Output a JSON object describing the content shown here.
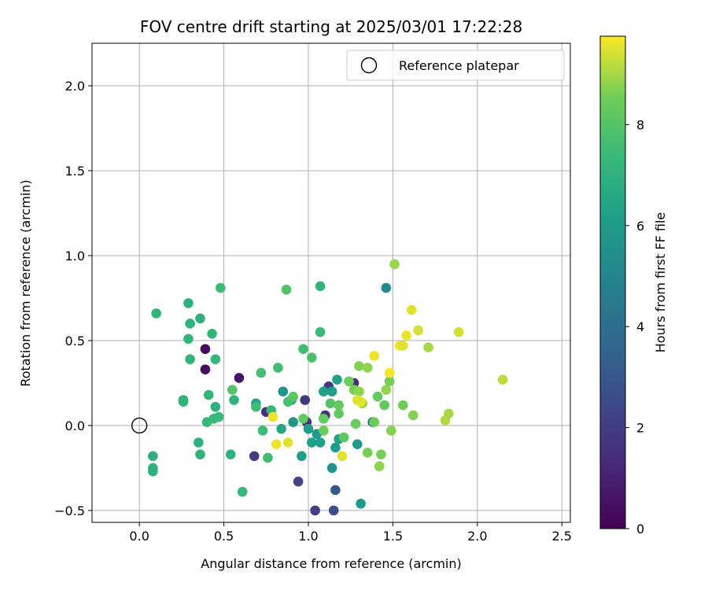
{
  "chart_data": {
    "type": "scatter",
    "title": "FOV centre drift starting at 2025/03/01 17:22:28",
    "xlabel": "Angular distance from reference (arcmin)",
    "ylabel": "Rotation from reference (arcmin)",
    "xlim": [
      -0.28,
      2.55
    ],
    "ylim": [
      -0.57,
      2.25
    ],
    "x_ticks": [
      0.0,
      0.5,
      1.0,
      1.5,
      2.0,
      2.5
    ],
    "x_tick_labels": [
      "0.0",
      "0.5",
      "1.0",
      "1.5",
      "2.0",
      "2.5"
    ],
    "y_ticks": [
      -0.5,
      0.0,
      0.5,
      1.0,
      1.5,
      2.0
    ],
    "y_tick_labels": [
      "−0.5",
      "0.0",
      "0.5",
      "1.0",
      "1.5",
      "2.0"
    ],
    "grid": true,
    "legend": {
      "placement": "top-right",
      "entries": [
        {
          "label": "Reference platepar",
          "marker": "open-circle"
        }
      ]
    },
    "reference_point": {
      "x": 0.0,
      "y": 0.0
    },
    "colorbar": {
      "label": "Hours from first FF file",
      "colormap": "viridis",
      "range": [
        0,
        9.75
      ],
      "ticks": [
        0,
        2,
        4,
        6,
        8
      ],
      "tick_labels": [
        "0",
        "2",
        "4",
        "6",
        "8"
      ]
    },
    "points": [
      {
        "x": 0.39,
        "y": 0.45,
        "h": 0.3
      },
      {
        "x": 0.39,
        "y": 0.33,
        "h": 0.4
      },
      {
        "x": 0.59,
        "y": 0.28,
        "h": 0.6
      },
      {
        "x": 0.68,
        "y": -0.18,
        "h": 2.0
      },
      {
        "x": 0.94,
        "y": -0.33,
        "h": 2.2
      },
      {
        "x": 1.04,
        "y": -0.5,
        "h": 2.1
      },
      {
        "x": 1.15,
        "y": -0.5,
        "h": 2.6
      },
      {
        "x": 1.16,
        "y": -0.38,
        "h": 3.0
      },
      {
        "x": 1.12,
        "y": 0.23,
        "h": 1.9
      },
      {
        "x": 1.1,
        "y": 0.06,
        "h": 1.7
      },
      {
        "x": 0.99,
        "y": 0.02,
        "h": 1.6
      },
      {
        "x": 0.98,
        "y": 0.15,
        "h": 1.8
      },
      {
        "x": 1.27,
        "y": 0.25,
        "h": 1.5
      },
      {
        "x": 0.75,
        "y": 0.08,
        "h": 1.4
      },
      {
        "x": 1.38,
        "y": 0.02,
        "h": 4.7
      },
      {
        "x": 1.46,
        "y": 0.81,
        "h": 5.2
      },
      {
        "x": 0.85,
        "y": 0.2,
        "h": 5.6
      },
      {
        "x": 0.91,
        "y": 0.02,
        "h": 5.8
      },
      {
        "x": 1.0,
        "y": -0.02,
        "h": 6.0
      },
      {
        "x": 1.02,
        "y": -0.1,
        "h": 6.2
      },
      {
        "x": 1.05,
        "y": -0.05,
        "h": 5.9
      },
      {
        "x": 1.07,
        "y": -0.1,
        "h": 6.1
      },
      {
        "x": 1.14,
        "y": -0.25,
        "h": 5.7
      },
      {
        "x": 1.16,
        "y": -0.13,
        "h": 6.1
      },
      {
        "x": 1.18,
        "y": -0.08,
        "h": 6.3
      },
      {
        "x": 1.29,
        "y": -0.11,
        "h": 6.0
      },
      {
        "x": 1.31,
        "y": -0.46,
        "h": 5.9
      },
      {
        "x": 0.96,
        "y": -0.18,
        "h": 6.2
      },
      {
        "x": 1.14,
        "y": 0.2,
        "h": 6.1
      },
      {
        "x": 1.17,
        "y": 0.27,
        "h": 6.3
      },
      {
        "x": 1.09,
        "y": 0.2,
        "h": 6.2
      },
      {
        "x": 0.69,
        "y": 0.13,
        "h": 6.4
      },
      {
        "x": 0.84,
        "y": -0.02,
        "h": 6.5
      },
      {
        "x": 0.9,
        "y": 0.15,
        "h": 6.6
      },
      {
        "x": 0.26,
        "y": 0.15,
        "h": 6.9
      },
      {
        "x": 0.29,
        "y": 0.72,
        "h": 7.0
      },
      {
        "x": 0.3,
        "y": 0.6,
        "h": 7.1
      },
      {
        "x": 0.36,
        "y": 0.63,
        "h": 7.0
      },
      {
        "x": 0.29,
        "y": 0.51,
        "h": 7.2
      },
      {
        "x": 0.3,
        "y": 0.39,
        "h": 7.1
      },
      {
        "x": 0.1,
        "y": 0.66,
        "h": 7.2
      },
      {
        "x": 0.08,
        "y": -0.18,
        "h": 7.0
      },
      {
        "x": 0.08,
        "y": -0.25,
        "h": 7.1
      },
      {
        "x": 0.08,
        "y": -0.27,
        "h": 6.9
      },
      {
        "x": 0.35,
        "y": -0.1,
        "h": 7.0
      },
      {
        "x": 0.36,
        "y": -0.17,
        "h": 7.1
      },
      {
        "x": 0.4,
        "y": 0.02,
        "h": 7.3
      },
      {
        "x": 0.41,
        "y": 0.18,
        "h": 7.2
      },
      {
        "x": 0.43,
        "y": 0.54,
        "h": 7.2
      },
      {
        "x": 0.45,
        "y": 0.11,
        "h": 7.0
      },
      {
        "x": 0.45,
        "y": 0.39,
        "h": 7.3
      },
      {
        "x": 0.47,
        "y": 0.05,
        "h": 7.4
      },
      {
        "x": 0.48,
        "y": 0.81,
        "h": 7.5
      },
      {
        "x": 0.54,
        "y": -0.17,
        "h": 7.0
      },
      {
        "x": 0.56,
        "y": 0.15,
        "h": 7.1
      },
      {
        "x": 0.61,
        "y": -0.39,
        "h": 7.3
      },
      {
        "x": 0.26,
        "y": 0.14,
        "h": 7.2
      },
      {
        "x": 0.44,
        "y": 0.04,
        "h": 7.4
      },
      {
        "x": 0.69,
        "y": 0.11,
        "h": 7.6
      },
      {
        "x": 0.72,
        "y": 0.31,
        "h": 7.7
      },
      {
        "x": 0.73,
        "y": -0.03,
        "h": 7.5
      },
      {
        "x": 0.76,
        "y": -0.19,
        "h": 7.6
      },
      {
        "x": 0.78,
        "y": 0.09,
        "h": 7.4
      },
      {
        "x": 0.82,
        "y": 0.34,
        "h": 7.6
      },
      {
        "x": 0.88,
        "y": 0.14,
        "h": 7.7
      },
      {
        "x": 0.87,
        "y": 0.8,
        "h": 7.9
      },
      {
        "x": 0.97,
        "y": 0.45,
        "h": 7.6
      },
      {
        "x": 1.02,
        "y": 0.4,
        "h": 7.8
      },
      {
        "x": 1.07,
        "y": 0.82,
        "h": 7.2
      },
      {
        "x": 1.07,
        "y": 0.55,
        "h": 7.4
      },
      {
        "x": 0.55,
        "y": 0.21,
        "h": 8.0
      },
      {
        "x": 0.91,
        "y": 0.17,
        "h": 8.1
      },
      {
        "x": 0.97,
        "y": 0.04,
        "h": 8.2
      },
      {
        "x": 1.09,
        "y": 0.04,
        "h": 8.3
      },
      {
        "x": 1.09,
        "y": -0.03,
        "h": 8.4
      },
      {
        "x": 1.13,
        "y": 0.13,
        "h": 8.0
      },
      {
        "x": 1.18,
        "y": 0.07,
        "h": 8.2
      },
      {
        "x": 1.18,
        "y": 0.12,
        "h": 8.3
      },
      {
        "x": 1.21,
        "y": -0.07,
        "h": 8.1
      },
      {
        "x": 1.24,
        "y": 0.26,
        "h": 8.5
      },
      {
        "x": 1.27,
        "y": 0.21,
        "h": 8.6
      },
      {
        "x": 1.28,
        "y": 0.01,
        "h": 8.4
      },
      {
        "x": 1.3,
        "y": 0.2,
        "h": 8.8
      },
      {
        "x": 1.3,
        "y": 0.35,
        "h": 8.7
      },
      {
        "x": 1.32,
        "y": 0.13,
        "h": 8.9
      },
      {
        "x": 1.35,
        "y": -0.16,
        "h": 8.6
      },
      {
        "x": 1.35,
        "y": 0.34,
        "h": 8.8
      },
      {
        "x": 1.39,
        "y": 0.02,
        "h": 8.5
      },
      {
        "x": 1.41,
        "y": 0.17,
        "h": 8.3
      },
      {
        "x": 1.42,
        "y": -0.24,
        "h": 8.8
      },
      {
        "x": 1.43,
        "y": -0.17,
        "h": 8.6
      },
      {
        "x": 1.45,
        "y": 0.12,
        "h": 8.3
      },
      {
        "x": 1.46,
        "y": 0.21,
        "h": 8.8
      },
      {
        "x": 1.48,
        "y": 0.26,
        "h": 8.6
      },
      {
        "x": 1.49,
        "y": -0.03,
        "h": 8.7
      },
      {
        "x": 1.51,
        "y": 0.95,
        "h": 8.9
      },
      {
        "x": 1.56,
        "y": 0.12,
        "h": 8.5
      },
      {
        "x": 1.62,
        "y": 0.06,
        "h": 8.7
      },
      {
        "x": 1.71,
        "y": 0.46,
        "h": 9.0
      },
      {
        "x": 1.81,
        "y": 0.03,
        "h": 9.1
      },
      {
        "x": 1.83,
        "y": 0.07,
        "h": 9.0
      },
      {
        "x": 2.15,
        "y": 0.27,
        "h": 9.2
      },
      {
        "x": 0.79,
        "y": 0.05,
        "h": 9.6
      },
      {
        "x": 0.81,
        "y": -0.11,
        "h": 9.6
      },
      {
        "x": 0.88,
        "y": -0.1,
        "h": 9.5
      },
      {
        "x": 1.2,
        "y": -0.18,
        "h": 9.5
      },
      {
        "x": 1.31,
        "y": 0.14,
        "h": 9.6
      },
      {
        "x": 1.29,
        "y": 0.15,
        "h": 9.5
      },
      {
        "x": 1.39,
        "y": 0.41,
        "h": 9.6
      },
      {
        "x": 1.48,
        "y": 0.31,
        "h": 9.7
      },
      {
        "x": 1.54,
        "y": 0.47,
        "h": 9.6
      },
      {
        "x": 1.56,
        "y": 0.47,
        "h": 9.5
      },
      {
        "x": 1.58,
        "y": 0.53,
        "h": 9.6
      },
      {
        "x": 1.61,
        "y": 0.68,
        "h": 9.5
      },
      {
        "x": 1.65,
        "y": 0.56,
        "h": 9.4
      },
      {
        "x": 1.89,
        "y": 0.55,
        "h": 9.4
      }
    ]
  }
}
